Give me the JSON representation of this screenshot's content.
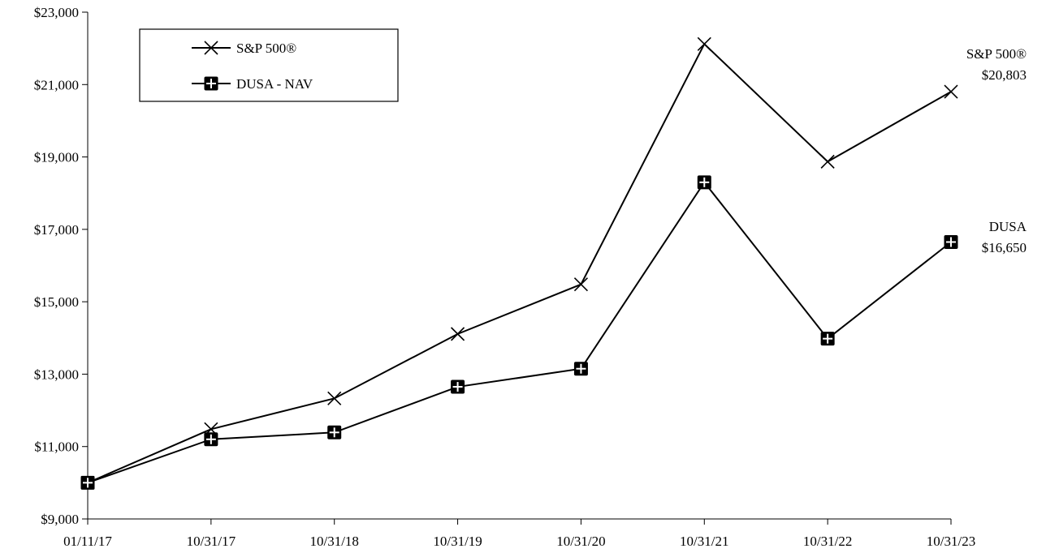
{
  "chart_data": {
    "type": "line",
    "categories": [
      "01/11/17",
      "10/31/17",
      "10/31/18",
      "10/31/19",
      "10/31/20",
      "10/31/21",
      "10/31/22",
      "10/31/23"
    ],
    "ylim": [
      9000,
      23000
    ],
    "yticks": [
      9000,
      11000,
      13000,
      15000,
      17000,
      19000,
      21000,
      23000
    ],
    "ytick_labels": [
      "$9,000",
      "$11,000",
      "$13,000",
      "$15,000",
      "$17,000",
      "$19,000",
      "$21,000",
      "$23,000"
    ],
    "grid": false,
    "legend_position": "top-left",
    "series": [
      {
        "name": "S&P 500®",
        "marker": "x",
        "color": "#000000",
        "values": [
          10000,
          11480,
          12330,
          14110,
          15480,
          22120,
          18870,
          20803
        ],
        "end_label": [
          "S&P 500®",
          "$20,803"
        ]
      },
      {
        "name": "DUSA - NAV",
        "marker": "square-plus",
        "color": "#000000",
        "values": [
          10000,
          11200,
          11390,
          12650,
          13150,
          18300,
          13980,
          16650
        ],
        "end_label": [
          "DUSA",
          "$16,650"
        ]
      }
    ]
  }
}
